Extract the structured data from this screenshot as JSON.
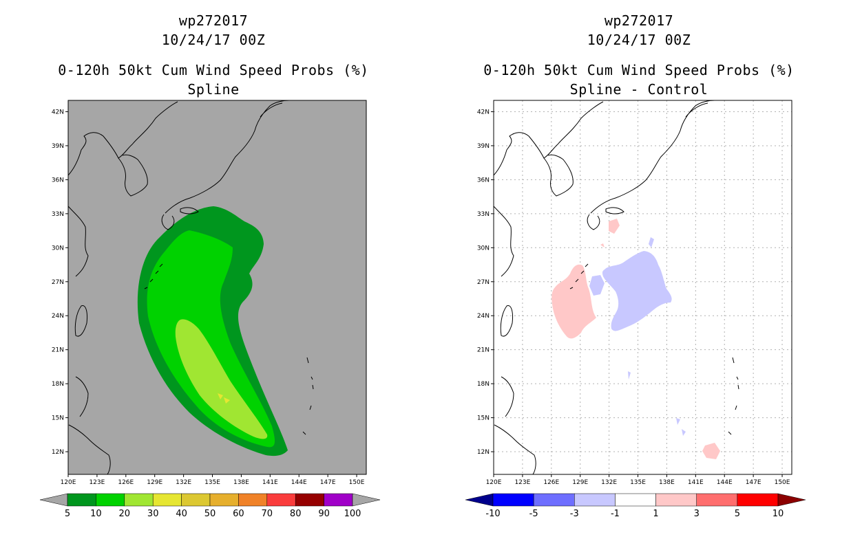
{
  "chart_data": [
    {
      "type": "heatmap",
      "panel": "left",
      "title_lines": [
        "wp272017",
        "10/24/17 00Z",
        "0-120h 50kt Cum Wind Speed Probs (%)",
        "Spline"
      ],
      "x_axis": {
        "range": [
          120,
          151
        ],
        "ticks": [
          "120E",
          "123E",
          "126E",
          "129E",
          "132E",
          "135E",
          "138E",
          "141E",
          "144E",
          "147E",
          "150E"
        ]
      },
      "y_axis": {
        "range": [
          10,
          43
        ],
        "ticks": [
          "12N",
          "15N",
          "18N",
          "21N",
          "24N",
          "27N",
          "30N",
          "33N",
          "36N",
          "39N",
          "42N"
        ]
      },
      "colorbar": {
        "labels": [
          "5",
          "10",
          "20",
          "30",
          "40",
          "50",
          "60",
          "70",
          "80",
          "90",
          "100"
        ],
        "colors": [
          "#a6a6a6",
          "#00961e",
          "#00d200",
          "#a0e632",
          "#e6e632",
          "#dcc832",
          "#e6af2d",
          "#f08228",
          "#fa3c3c",
          "#960000",
          "#a000c8",
          "#a6a6a6"
        ]
      },
      "background": "#a6a6a6",
      "contours": [
        {
          "level": "5-10",
          "color": "#00961e"
        },
        {
          "level": "10-20",
          "color": "#00d200"
        },
        {
          "level": "20-30",
          "color": "#a0e632"
        },
        {
          "level": "30-40",
          "color": "#e6e632"
        }
      ]
    },
    {
      "type": "heatmap",
      "panel": "right",
      "title_lines": [
        "wp272017",
        "10/24/17 00Z",
        "0-120h 50kt Cum Wind Speed Probs (%)",
        "Spline - Control"
      ],
      "x_axis": {
        "range": [
          120,
          151
        ],
        "ticks": [
          "120E",
          "123E",
          "126E",
          "129E",
          "132E",
          "135E",
          "138E",
          "141E",
          "144E",
          "147E",
          "150E"
        ]
      },
      "y_axis": {
        "range": [
          10,
          43
        ],
        "ticks": [
          "12N",
          "15N",
          "18N",
          "21N",
          "24N",
          "27N",
          "30N",
          "33N",
          "36N",
          "39N",
          "42N"
        ]
      },
      "colorbar": {
        "labels": [
          "-10",
          "-5",
          "-3",
          "-1",
          "1",
          "3",
          "5",
          "10"
        ],
        "colors": [
          "#00008c",
          "#0000ff",
          "#6e6eff",
          "#c8c8ff",
          "#ffffff",
          "#ffc8c8",
          "#ff6e6e",
          "#ff0000",
          "#8c0000"
        ]
      },
      "background": "#ffffff",
      "grid": true,
      "contours": [
        {
          "level": "1-3",
          "color": "#ffc8c8"
        },
        {
          "level": "-3--1",
          "color": "#c8c8ff"
        }
      ]
    }
  ]
}
